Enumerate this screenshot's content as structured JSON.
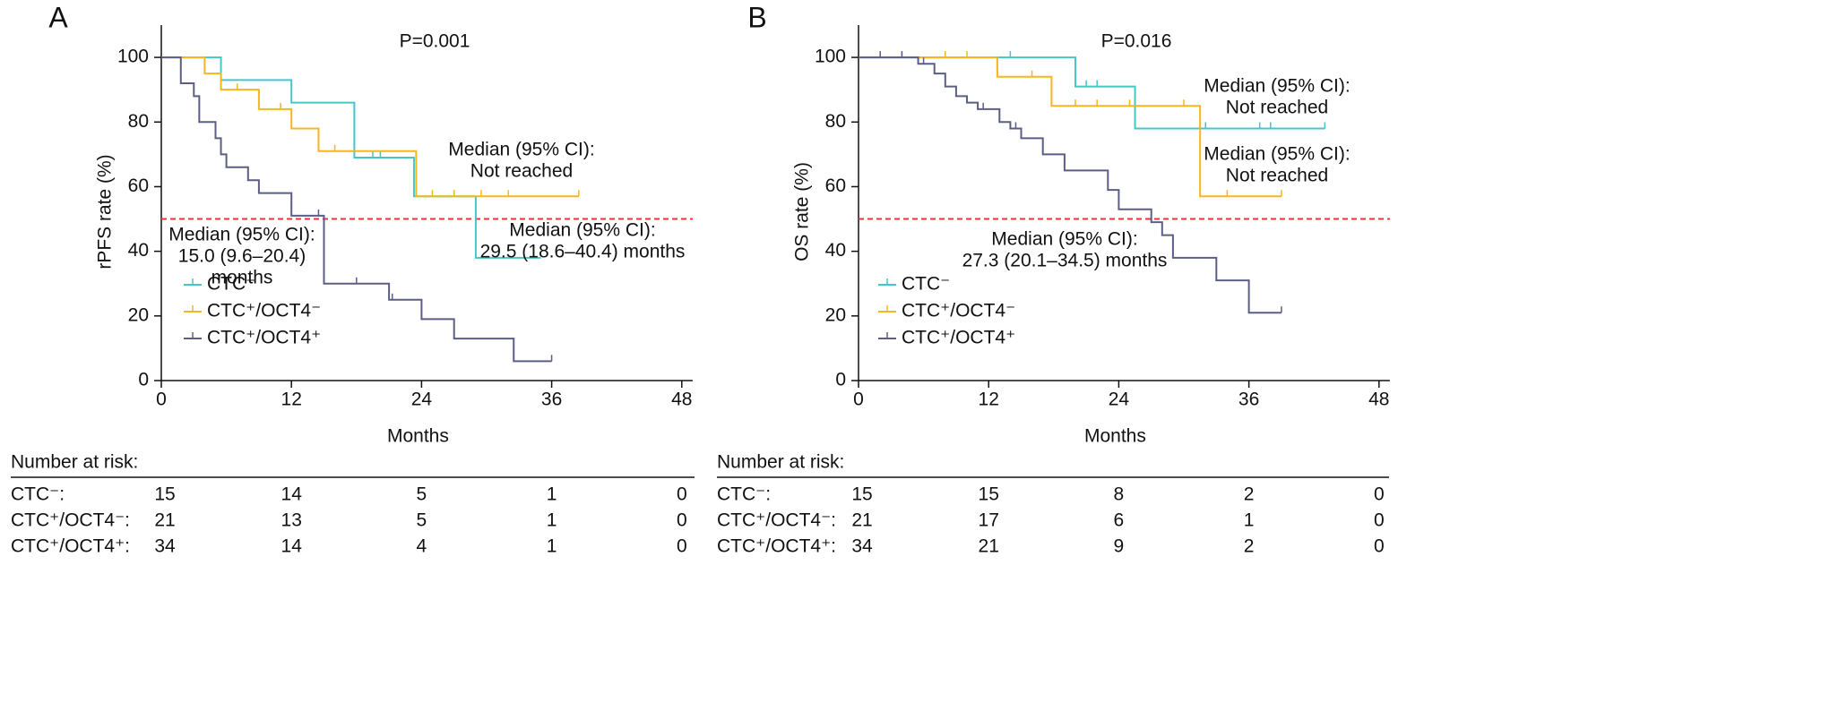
{
  "chart_data": [
    {
      "type": "step",
      "label": "A",
      "ylabel": "rPFS rate (%)",
      "xlabel": "Months",
      "xlim": [
        0,
        49
      ],
      "ylim": [
        0,
        110
      ],
      "xticks": [
        0,
        12,
        24,
        36,
        48
      ],
      "yticks": [
        0,
        20,
        40,
        60,
        80,
        100
      ],
      "reference_line": 50,
      "reference_color": "#f0333a",
      "series": [
        {
          "name": "CTC⁻",
          "color": "#45c6c8",
          "x": [
            0,
            5.5,
            12,
            17.8,
            23.3,
            29,
            35
          ],
          "values": [
            100,
            93,
            86,
            69,
            57,
            38,
            38
          ],
          "censored": [
            19.5,
            20.2,
            27
          ]
        },
        {
          "name": "CTC⁺/OCT4⁻",
          "color": "#f5b622",
          "x": [
            0,
            4,
            5.5,
            9,
            12,
            14.5,
            23.5,
            38.5
          ],
          "values": [
            100,
            95,
            90,
            84,
            78,
            71,
            57,
            57
          ],
          "censored": [
            7,
            11,
            16,
            25,
            27,
            29.5,
            32,
            38.5
          ]
        },
        {
          "name": "CTC⁺/OCT4⁺",
          "color": "#5c5f85",
          "x": [
            0,
            1.8,
            3,
            3.5,
            5,
            5.5,
            6,
            8,
            9,
            12,
            15,
            21,
            24,
            27,
            32.5,
            36
          ],
          "values": [
            100,
            92,
            88,
            80,
            75,
            70,
            66,
            62,
            58,
            51,
            30,
            25,
            19,
            13,
            6,
            6
          ],
          "censored": [
            14.5,
            18,
            21.3,
            36
          ]
        }
      ],
      "annotations": [
        [
          "P=0.001"
        ],
        [
          "Median (95% CI):",
          "Not reached"
        ],
        [
          "Median (95% CI):",
          "15.0 (9.6–20.4)",
          "months"
        ],
        [
          "Median (95% CI):",
          "29.5 (18.6–40.4) months"
        ]
      ],
      "risk_table": {
        "title": "Number at risk:",
        "rows": [
          {
            "label": "CTC⁻:",
            "counts": [
              15,
              14,
              5,
              1,
              0
            ]
          },
          {
            "label": "CTC⁺/OCT4⁻:",
            "counts": [
              21,
              13,
              5,
              1,
              0
            ]
          },
          {
            "label": "CTC⁺/OCT4⁺:",
            "counts": [
              34,
              14,
              4,
              1,
              0
            ]
          }
        ]
      }
    },
    {
      "type": "step",
      "label": "B",
      "ylabel": "OS rate (%)",
      "xlabel": "Months",
      "xlim": [
        0,
        49
      ],
      "ylim": [
        0,
        110
      ],
      "xticks": [
        0,
        12,
        24,
        36,
        48
      ],
      "yticks": [
        0,
        20,
        40,
        60,
        80,
        100
      ],
      "reference_line": 50,
      "reference_color": "#f0333a",
      "series": [
        {
          "name": "CTC⁻",
          "color": "#45c6c8",
          "x": [
            0,
            20,
            25.5,
            43
          ],
          "values": [
            100,
            91,
            78,
            78
          ],
          "censored": [
            14,
            21,
            22,
            32,
            37,
            38,
            43
          ]
        },
        {
          "name": "CTC⁺/OCT4⁻",
          "color": "#f5b622",
          "x": [
            0,
            12.8,
            17.8,
            31.5,
            39
          ],
          "values": [
            100,
            94,
            85,
            57,
            57
          ],
          "censored": [
            4,
            8,
            10,
            16,
            20,
            22,
            25,
            30,
            34,
            39
          ]
        },
        {
          "name": "CTC⁺/OCT4⁺",
          "color": "#5c5f85",
          "x": [
            0,
            5.5,
            7,
            8,
            9,
            10,
            11,
            13,
            14,
            15,
            17,
            19,
            23,
            24,
            27,
            28,
            29,
            33,
            36,
            39
          ],
          "values": [
            100,
            98,
            95,
            91,
            88,
            86,
            84,
            80,
            78,
            75,
            70,
            65,
            59,
            53,
            49,
            45,
            38,
            31,
            21,
            21
          ],
          "censored": [
            2,
            4,
            6,
            11.5,
            14.5,
            23,
            36,
            39
          ]
        }
      ],
      "annotations": [
        [
          "P=0.016"
        ],
        [
          "Median (95% CI):",
          "Not reached"
        ],
        [
          "Median (95% CI):",
          "Not reached"
        ],
        [
          "Median (95% CI):",
          "27.3 (20.1–34.5) months"
        ]
      ],
      "risk_table": {
        "title": "Number at risk:",
        "rows": [
          {
            "label": "CTC⁻:",
            "counts": [
              15,
              15,
              8,
              2,
              0
            ]
          },
          {
            "label": "CTC⁺/OCT4⁻:",
            "counts": [
              21,
              17,
              6,
              1,
              0
            ]
          },
          {
            "label": "CTC⁺/OCT4⁺:",
            "counts": [
              34,
              21,
              9,
              2,
              0
            ]
          }
        ]
      }
    }
  ]
}
